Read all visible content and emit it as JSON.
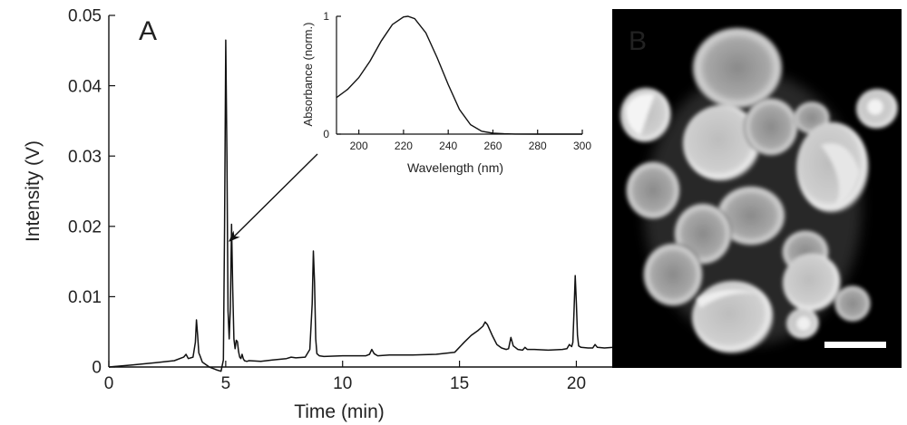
{
  "chart_data": [
    {
      "panel_label": "A",
      "type": "line",
      "xlabel": "Time (min)",
      "ylabel": "Intensity (V)",
      "xlim": [
        0,
        22
      ],
      "ylim": [
        0,
        0.05
      ],
      "xticks": [
        0,
        5,
        10,
        15,
        20
      ],
      "xtick_labels": [
        "0",
        "5",
        "10",
        "15",
        "20"
      ],
      "yticks": [
        0,
        0.01,
        0.02,
        0.03,
        0.04,
        0.05
      ],
      "ytick_labels": [
        "0",
        "0.01",
        "0.02",
        "0.03",
        "0.04",
        "0.05"
      ],
      "grid": false,
      "series": [
        {
          "x": [
            0,
            1,
            2,
            2.8,
            3.2,
            3.3,
            3.4,
            3.6,
            3.7,
            3.75,
            3.8,
            3.85,
            3.9,
            4.0,
            4.3,
            4.6,
            4.8,
            4.9,
            4.95,
            5.0,
            5.05,
            5.1,
            5.15,
            5.2,
            5.25,
            5.3,
            5.35,
            5.4,
            5.45,
            5.5,
            5.55,
            5.6,
            5.65,
            5.7,
            5.75,
            5.8,
            5.9,
            6.0,
            6.5,
            7.0,
            7.6,
            7.8,
            8.0,
            8.4,
            8.6,
            8.7,
            8.75,
            8.8,
            8.85,
            8.9,
            9.0,
            9.2,
            10.0,
            11.0,
            11.15,
            11.25,
            11.35,
            11.5,
            12.0,
            13.0,
            14.0,
            14.8,
            15.2,
            15.5,
            15.8,
            16.0,
            16.1,
            16.2,
            16.4,
            16.6,
            16.8,
            17.0,
            17.1,
            17.2,
            17.3,
            17.5,
            17.7,
            17.8,
            17.9,
            18.2,
            18.8,
            19.4,
            19.6,
            19.7,
            19.8,
            19.85,
            19.9,
            19.95,
            20.0,
            20.05,
            20.1,
            20.2,
            20.5,
            20.7,
            20.8,
            20.9,
            21.2,
            21.6,
            22.0
          ],
          "y": [
            0.0,
            0.0003,
            0.0006,
            0.0009,
            0.0014,
            0.0018,
            0.0012,
            0.0014,
            0.0035,
            0.0067,
            0.0045,
            0.002,
            0.0016,
            0.0007,
            0.0,
            -0.0004,
            -0.0006,
            0.001,
            0.02,
            0.0465,
            0.03,
            0.008,
            0.004,
            0.0085,
            0.0203,
            0.011,
            0.004,
            0.0026,
            0.0038,
            0.0036,
            0.0022,
            0.0014,
            0.0012,
            0.0018,
            0.0012,
            0.0009,
            0.0008,
            0.0009,
            0.0008,
            0.001,
            0.0012,
            0.0014,
            0.0013,
            0.0014,
            0.0025,
            0.009,
            0.0165,
            0.012,
            0.004,
            0.0019,
            0.0016,
            0.0015,
            0.0016,
            0.0016,
            0.0018,
            0.0025,
            0.0019,
            0.0016,
            0.0017,
            0.0017,
            0.0018,
            0.0021,
            0.0035,
            0.0045,
            0.0052,
            0.0058,
            0.0064,
            0.006,
            0.0045,
            0.0032,
            0.0027,
            0.0025,
            0.0026,
            0.0042,
            0.003,
            0.0025,
            0.0024,
            0.0028,
            0.0025,
            0.0025,
            0.0024,
            0.0025,
            0.0026,
            0.0032,
            0.0029,
            0.0035,
            0.008,
            0.013,
            0.009,
            0.0045,
            0.003,
            0.0028,
            0.0027,
            0.0027,
            0.0032,
            0.0028,
            0.0027,
            0.0028,
            0.0027
          ]
        }
      ],
      "annotation": "arrow from inset to peak near 5.2 min"
    },
    {
      "panel_label": "",
      "type": "line",
      "inset": true,
      "xlabel": "Wavelength (nm)",
      "ylabel": "Absorbance (norm.)",
      "xlim": [
        190,
        300
      ],
      "ylim": [
        0,
        1
      ],
      "xticks": [
        200,
        220,
        240,
        260,
        280,
        300
      ],
      "xtick_labels": [
        "200",
        "220",
        "240",
        "260",
        "280",
        "300"
      ],
      "yticks": [
        0,
        1
      ],
      "ytick_labels": [
        "0",
        "1"
      ],
      "grid": false,
      "series": [
        {
          "x": [
            190,
            195,
            200,
            205,
            210,
            215,
            220,
            222,
            225,
            230,
            235,
            240,
            245,
            250,
            255,
            260,
            265,
            270,
            280,
            290,
            300
          ],
          "y": [
            0.31,
            0.38,
            0.48,
            0.62,
            0.79,
            0.93,
            0.995,
            1.0,
            0.98,
            0.86,
            0.65,
            0.42,
            0.21,
            0.08,
            0.025,
            0.008,
            0.003,
            0.001,
            0.0,
            0.0,
            0.0
          ]
        }
      ]
    }
  ],
  "micrograph": {
    "panel_label": "B",
    "background_color": "#000000",
    "cell_color": "#d9d9d9",
    "scale_bar_color": "#ffffff"
  }
}
